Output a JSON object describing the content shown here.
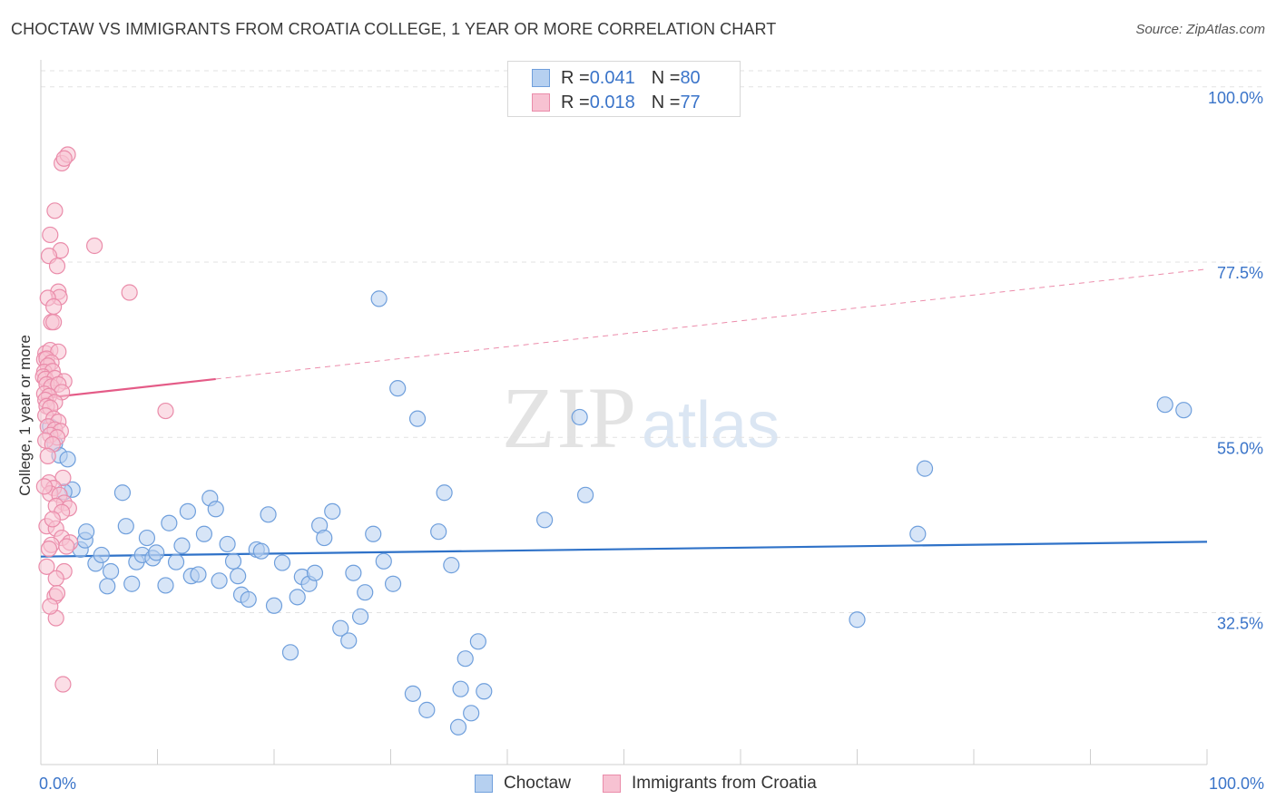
{
  "header": {
    "title": "CHOCTAW VS IMMIGRANTS FROM CROATIA COLLEGE, 1 YEAR OR MORE CORRELATION CHART",
    "source": "Source: ZipAtlas.com"
  },
  "legend": {
    "r_label": "R = ",
    "n_label": "N = ",
    "rows": [
      {
        "r": "0.041",
        "n": "80"
      },
      {
        "r": "0.018",
        "n": "77"
      }
    ]
  },
  "watermark": {
    "zip": "ZIP",
    "atlas": "atlas"
  },
  "colors": {
    "choctaw_fill": "#b6d0f0",
    "choctaw_stroke": "#6f9fdc",
    "choctaw_line": "#2f72c8",
    "croatia_fill": "#f7c2d2",
    "croatia_stroke": "#ea8caa",
    "croatia_line": "#e45b87",
    "tick_label": "#3a74c9",
    "grid": "#e2e2e2"
  },
  "chart_data": {
    "type": "scatter",
    "title": "CHOCTAW VS IMMIGRANTS FROM CROATIA COLLEGE, 1 YEAR OR MORE CORRELATION CHART",
    "xlabel": "",
    "ylabel": "College, 1 year or more",
    "xlim": [
      0,
      100
    ],
    "ylim": [
      13,
      103
    ],
    "x_tick_labels": [
      "0.0%",
      "100.0%"
    ],
    "y_ticks": [
      32.5,
      55.0,
      77.5,
      100.0
    ],
    "y_tick_labels": [
      "32.5%",
      "55.0%",
      "77.5%",
      "100.0%"
    ],
    "grid": true,
    "legend_position": "top-center",
    "series": [
      {
        "name": "Choctaw",
        "r": 0.041,
        "n": 80,
        "trend": {
          "x": [
            0,
            100
          ],
          "y": [
            39.7,
            41.6
          ],
          "style": "solid"
        },
        "points": [
          [
            1.2,
            54.2
          ],
          [
            1.6,
            52.7
          ],
          [
            2.3,
            52.2
          ],
          [
            2.7,
            48.3
          ],
          [
            3.4,
            40.6
          ],
          [
            3.8,
            41.8
          ],
          [
            3.9,
            42.9
          ],
          [
            4.7,
            38.8
          ],
          [
            5.2,
            39.9
          ],
          [
            5.7,
            35.9
          ],
          [
            6.0,
            37.8
          ],
          [
            7.0,
            47.9
          ],
          [
            7.3,
            43.6
          ],
          [
            7.8,
            36.2
          ],
          [
            8.2,
            39.0
          ],
          [
            8.7,
            39.9
          ],
          [
            9.1,
            42.1
          ],
          [
            9.6,
            39.5
          ],
          [
            9.9,
            40.2
          ],
          [
            10.7,
            36.0
          ],
          [
            11.0,
            44.0
          ],
          [
            11.6,
            39.0
          ],
          [
            12.1,
            41.1
          ],
          [
            12.6,
            45.5
          ],
          [
            12.9,
            37.2
          ],
          [
            13.5,
            37.4
          ],
          [
            14.0,
            42.6
          ],
          [
            14.5,
            47.2
          ],
          [
            15.0,
            45.8
          ],
          [
            15.3,
            36.6
          ],
          [
            16.0,
            41.3
          ],
          [
            16.5,
            39.1
          ],
          [
            16.9,
            37.2
          ],
          [
            17.2,
            34.8
          ],
          [
            17.8,
            34.2
          ],
          [
            18.5,
            40.6
          ],
          [
            18.9,
            40.4
          ],
          [
            19.5,
            45.1
          ],
          [
            20.0,
            33.4
          ],
          [
            20.7,
            38.9
          ],
          [
            21.4,
            27.4
          ],
          [
            22.0,
            34.5
          ],
          [
            22.4,
            37.1
          ],
          [
            23.0,
            36.2
          ],
          [
            23.5,
            37.6
          ],
          [
            23.9,
            43.7
          ],
          [
            24.3,
            42.1
          ],
          [
            25.0,
            45.5
          ],
          [
            25.7,
            30.5
          ],
          [
            26.4,
            28.9
          ],
          [
            26.8,
            37.6
          ],
          [
            27.4,
            32.0
          ],
          [
            27.8,
            35.1
          ],
          [
            28.5,
            42.6
          ],
          [
            29.4,
            39.1
          ],
          [
            30.2,
            36.2
          ],
          [
            30.6,
            61.3
          ],
          [
            31.9,
            22.1
          ],
          [
            32.3,
            57.4
          ],
          [
            33.1,
            20.0
          ],
          [
            34.1,
            42.9
          ],
          [
            34.6,
            47.9
          ],
          [
            35.2,
            38.6
          ],
          [
            35.8,
            17.8
          ],
          [
            36.0,
            22.7
          ],
          [
            36.4,
            26.6
          ],
          [
            36.9,
            19.6
          ],
          [
            37.5,
            28.8
          ],
          [
            38.0,
            22.4
          ],
          [
            43.2,
            44.4
          ],
          [
            46.2,
            57.6
          ],
          [
            46.7,
            47.6
          ],
          [
            29.0,
            72.8
          ],
          [
            75.8,
            51.0
          ],
          [
            75.2,
            42.6
          ],
          [
            70.0,
            31.6
          ],
          [
            96.4,
            59.2
          ],
          [
            98.0,
            58.5
          ],
          [
            0.8,
            56.4
          ],
          [
            2.0,
            48.0
          ]
        ]
      },
      {
        "name": "Immigrants from Croatia",
        "r": 0.018,
        "n": 77,
        "trend": {
          "x": [
            0,
            100
          ],
          "y": [
            60.0,
            76.6
          ],
          "solid_until": 15
        },
        "points": [
          [
            1.8,
            90.2
          ],
          [
            2.3,
            91.3
          ],
          [
            2.0,
            90.8
          ],
          [
            1.2,
            84.1
          ],
          [
            0.8,
            81.0
          ],
          [
            1.7,
            79.0
          ],
          [
            0.7,
            78.3
          ],
          [
            1.4,
            77.0
          ],
          [
            4.6,
            79.6
          ],
          [
            7.6,
            73.6
          ],
          [
            1.5,
            73.7
          ],
          [
            1.6,
            73.0
          ],
          [
            0.6,
            72.9
          ],
          [
            1.1,
            71.8
          ],
          [
            0.9,
            69.8
          ],
          [
            1.1,
            69.8
          ],
          [
            0.4,
            65.8
          ],
          [
            0.8,
            66.2
          ],
          [
            1.5,
            66.0
          ],
          [
            0.3,
            65.0
          ],
          [
            0.5,
            65.1
          ],
          [
            0.9,
            64.6
          ],
          [
            0.6,
            64.2
          ],
          [
            0.3,
            63.4
          ],
          [
            1.0,
            63.5
          ],
          [
            0.2,
            62.8
          ],
          [
            0.4,
            62.5
          ],
          [
            1.2,
            62.6
          ],
          [
            2.0,
            62.2
          ],
          [
            0.5,
            61.8
          ],
          [
            0.9,
            61.5
          ],
          [
            1.5,
            61.8
          ],
          [
            1.8,
            60.8
          ],
          [
            0.3,
            60.6
          ],
          [
            0.7,
            60.3
          ],
          [
            0.4,
            59.8
          ],
          [
            1.2,
            59.5
          ],
          [
            0.5,
            59.0
          ],
          [
            0.8,
            58.8
          ],
          [
            10.7,
            58.4
          ],
          [
            0.4,
            57.8
          ],
          [
            1.1,
            57.4
          ],
          [
            1.5,
            57.0
          ],
          [
            0.6,
            56.4
          ],
          [
            1.2,
            56.0
          ],
          [
            1.7,
            55.8
          ],
          [
            0.8,
            55.3
          ],
          [
            1.4,
            55.0
          ],
          [
            0.4,
            54.6
          ],
          [
            1.0,
            54.1
          ],
          [
            0.6,
            52.6
          ],
          [
            1.9,
            49.8
          ],
          [
            0.7,
            49.2
          ],
          [
            1.1,
            48.5
          ],
          [
            0.8,
            47.8
          ],
          [
            1.6,
            47.6
          ],
          [
            2.0,
            46.6
          ],
          [
            1.3,
            46.2
          ],
          [
            2.4,
            45.9
          ],
          [
            1.8,
            45.4
          ],
          [
            0.5,
            43.6
          ],
          [
            1.3,
            43.3
          ],
          [
            1.8,
            42.1
          ],
          [
            2.5,
            41.5
          ],
          [
            2.2,
            41.0
          ],
          [
            0.9,
            41.2
          ],
          [
            2.0,
            37.8
          ],
          [
            1.3,
            36.9
          ],
          [
            1.2,
            34.6
          ],
          [
            1.3,
            31.8
          ],
          [
            1.9,
            23.3
          ],
          [
            0.3,
            48.7
          ],
          [
            0.7,
            40.7
          ],
          [
            1.0,
            44.5
          ],
          [
            0.5,
            38.4
          ],
          [
            1.4,
            35.0
          ],
          [
            0.8,
            33.3
          ]
        ]
      }
    ]
  }
}
